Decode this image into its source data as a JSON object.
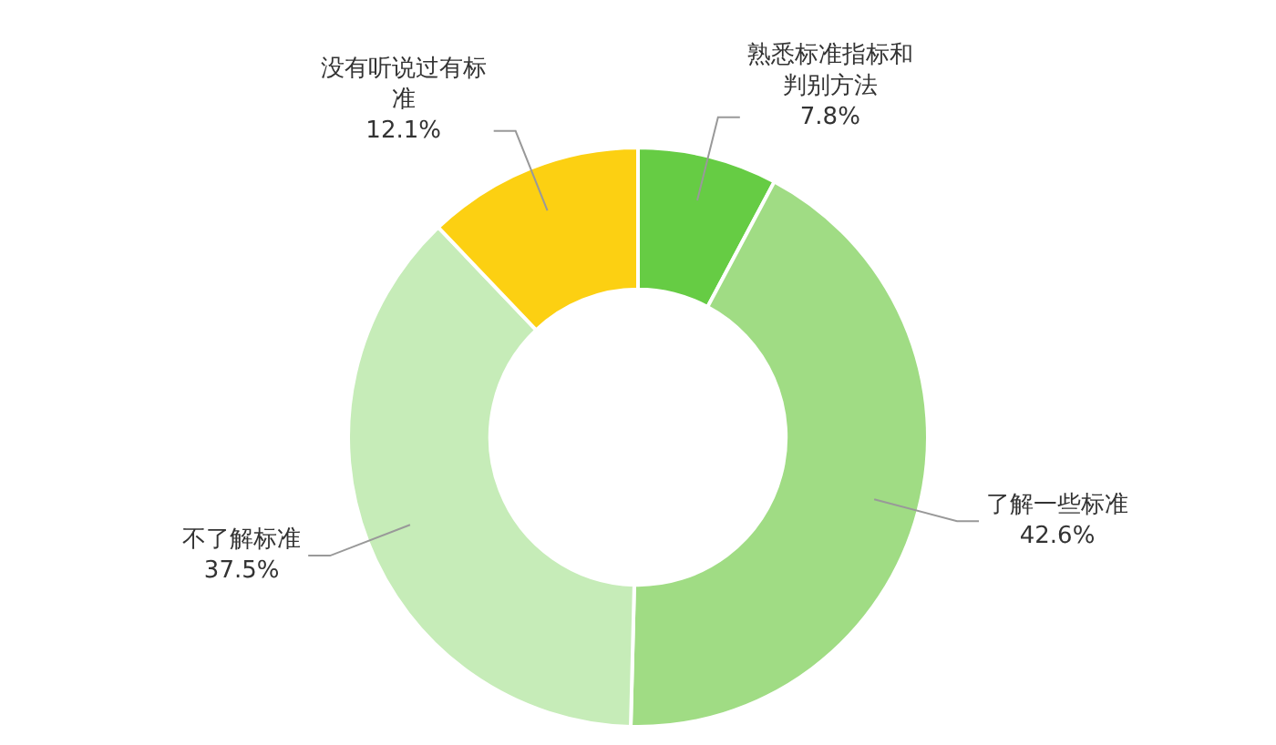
{
  "chart_data": {
    "type": "donut",
    "categories": [
      "熟悉标准指标和判别方法",
      "了解一些标准",
      "不了解标准",
      "没有听说过有标准"
    ],
    "values": [
      7.8,
      42.6,
      37.5,
      12.1
    ],
    "colors": [
      "#66cc44",
      "#a0dc84",
      "#c6ecb8",
      "#fcd012"
    ],
    "value_labels": [
      "7.8%",
      "42.6%",
      "37.5%",
      "12.1%"
    ],
    "legend": false
  }
}
